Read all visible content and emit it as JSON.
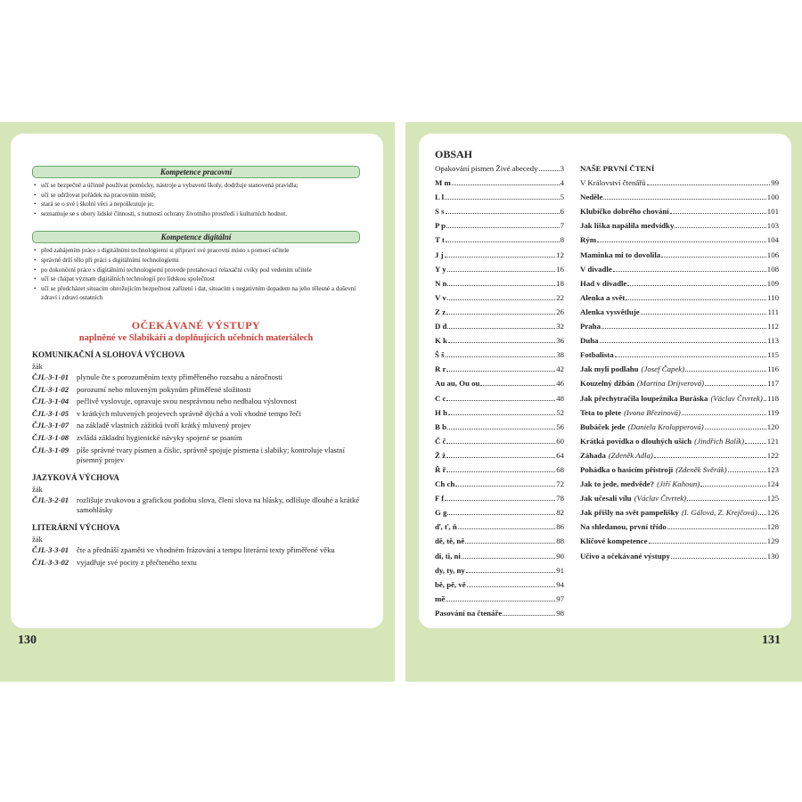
{
  "left": {
    "page_number": "130",
    "competences": [
      {
        "title": "Kompetence pracovní",
        "items": [
          "učí se bezpečně a účinně používat pomůcky, nástroje a vybavení školy, dodržuje stanovená pravidla;",
          "učí se udržovat pořádek na pracovním místě;",
          "stará se o své i školní věci a nepoškozuje je;",
          "seznamuje se s obory lidské činnosti, s nutností ochrany životního prostředí i kulturních hodnot."
        ]
      },
      {
        "title": "Kompetence digitální",
        "items": [
          "před zahájením práce s digitálními technologiemi si připraví své pracovní místo s pomocí učitele",
          "správně drží tělo při práci s digitálními technologiemi",
          "po dokončení práce s digitálními technologiemi provede protahovací relaxační cviky pod vedením učitele",
          "učí se chápat význam digitálních technologií pro lidskou společnost",
          "učí se předcházet situacím ohrožujícím bezpečnost zařízení i dat, situacím s negativním dopadem na jeho tělesné a duševní zdraví i zdraví ostatních"
        ]
      }
    ],
    "outcomes_title": "OČEKÁVANÉ VÝSTUPY",
    "outcomes_subtitle": "naplněné ve Slabikáři a doplňujících učebních materiálech",
    "sections": [
      {
        "title": "KOMUNIKAČNÍ A SLOHOVÁ VÝCHOVA",
        "subject": "žák",
        "items": [
          {
            "code": "ČJL-3-1-01",
            "text": "plynule čte s porozuměním texty přiměřeného rozsahu a náročnosti"
          },
          {
            "code": "ČJL-3-1-02",
            "text": "porozumí nebo mluveným pokynům přiměřené složitosti"
          },
          {
            "code": "ČJL-3-1-04",
            "text": "pečlivě vyslovuje, opravuje svou nesprávnou nebo nedbalou výslovnost"
          },
          {
            "code": "ČJL-3-1-05",
            "text": "v krátkých mluvených projevech správně dýchá a volí vhodné tempo řeči"
          },
          {
            "code": "ČJL-3-1-07",
            "text": "na základě vlastních zážitků tvoří krátký mluvený projev"
          },
          {
            "code": "ČJL-3-1-08",
            "text": "zvládá základní hygienické návyky spojené se psaním"
          },
          {
            "code": "ČJL-3-1-09",
            "text": "píše správné tvary písmen a číslic, správně spojuje písmena i slabiky; kontroluje vlastní písemný projev"
          }
        ]
      },
      {
        "title": "JAZYKOVÁ VÝCHOVA",
        "subject": "žák",
        "items": [
          {
            "code": "ČJL-3-2-01",
            "text": "rozlišuje zvukovou a grafickou podobu slova, člení slova na hlásky, odlišuje dlouhé a krátké samohlásky"
          }
        ]
      },
      {
        "title": "LITERÁRNÍ VÝCHOVA",
        "subject": "žák",
        "items": [
          {
            "code": "ČJL-3-3-01",
            "text": "čte a přednáší zpaměti ve vhodném frázování a tempu literární texty přiměřené věku"
          },
          {
            "code": "ČJL-3-3-02",
            "text": "vyjadřuje své pocity z přečteného textu"
          }
        ]
      }
    ]
  },
  "right": {
    "page_number": "131",
    "title": "OBSAH",
    "column1": [
      {
        "title": "Opakování písmen Živé abecedy",
        "page": "3"
      },
      {
        "title": "M m",
        "page": "4"
      },
      {
        "title": "L l",
        "page": "5"
      },
      {
        "title": "S s",
        "page": "6"
      },
      {
        "title": "P p",
        "page": "7"
      },
      {
        "title": "T t",
        "page": "8"
      },
      {
        "title": "J j",
        "page": "12"
      },
      {
        "title": "Y y",
        "page": "16"
      },
      {
        "title": "N n",
        "page": "18"
      },
      {
        "title": "V v",
        "page": "22"
      },
      {
        "title": "Z z",
        "page": "26"
      },
      {
        "title": "D d",
        "page": "32"
      },
      {
        "title": "K k",
        "page": "36"
      },
      {
        "title": "Š š",
        "page": "38"
      },
      {
        "title": "R r",
        "page": "42"
      },
      {
        "title": "Au au, Ou ou",
        "page": "46"
      },
      {
        "title": "C c",
        "page": "48"
      },
      {
        "title": "H h",
        "page": "52"
      },
      {
        "title": "B b",
        "page": "56"
      },
      {
        "title": "Č č",
        "page": "60"
      },
      {
        "title": "Ž ž",
        "page": "64"
      },
      {
        "title": "Ř ř",
        "page": "68"
      },
      {
        "title": "Ch ch",
        "page": "72"
      },
      {
        "title": "F f",
        "page": "78"
      },
      {
        "title": "G g",
        "page": "82"
      },
      {
        "title": "ď, ť, ň",
        "page": "86"
      },
      {
        "title": "dě, tě, ně",
        "page": "88"
      },
      {
        "title": "di, ti, ni",
        "page": "90"
      },
      {
        "title": "dy, ty, ny",
        "page": "91"
      },
      {
        "title": "bě, pě, vě",
        "page": "94"
      },
      {
        "title": "mě",
        "page": "97"
      },
      {
        "title": "Pasování na čtenáře",
        "page": "98"
      }
    ],
    "column2_title": "NAŠE PRVNÍ ČTENÍ",
    "column2": [
      {
        "title": "V Království čtenářů",
        "page": "99"
      },
      {
        "title": "Neděle",
        "page": "100"
      },
      {
        "title": "Klubíčko dobrého chování",
        "page": "101"
      },
      {
        "title": "Jak liška napálila medvídky",
        "page": "103"
      },
      {
        "title": "Rým",
        "page": "104"
      },
      {
        "title": "Maminka mi to dovolila",
        "page": "106"
      },
      {
        "title": "V divadle",
        "page": "108"
      },
      {
        "title": "Had v divadle",
        "page": "109"
      },
      {
        "title": "Alenka a svět",
        "page": "110"
      },
      {
        "title": "Alenka vysvětluje",
        "page": "111"
      },
      {
        "title": "Praha",
        "page": "112"
      },
      {
        "title": "Duha",
        "page": "113"
      },
      {
        "title": "Fotbalista",
        "page": "115"
      },
      {
        "title": "Jak myli podlahu",
        "author": "(Josef Čapek)",
        "page": "116"
      },
      {
        "title": "Kouzelný džbán",
        "author": "(Martina Drijverová)",
        "page": "117"
      },
      {
        "title": "Jak přechytračila loupežníka Buráska",
        "author": "(Václav Čtvrtek)",
        "page": "118"
      },
      {
        "title": "Teta to plete",
        "author": "(Ivona Březinová)",
        "page": "119"
      },
      {
        "title": "Bubáček jede",
        "author": "(Daniela Krolupperová)",
        "page": "120"
      },
      {
        "title": "Krátká povídka o dlouhých uších",
        "author": "(Jindřich Balík)",
        "page": "121"
      },
      {
        "title": "Záhada",
        "author": "(Zdeněk Adla)",
        "page": "122"
      },
      {
        "title": "Pohádka o hasicím přístroji",
        "author": "(Zdeněk Svěrák)",
        "page": "123"
      },
      {
        "title": "Jak to jede, medvěde?",
        "author": "(Jiří Kahoun)",
        "page": "124"
      },
      {
        "title": "Jak učesali vílu",
        "author": "(Václav Čtvrtek)",
        "page": "125"
      },
      {
        "title": "Jak přišly na svět pampelišky",
        "author": "(I. Gálová, Z. Krejčová)",
        "page": "126"
      },
      {
        "title": "Na shledanou, první třído",
        "page": "128"
      },
      {
        "title": "Klíčové kompetence",
        "page": "129"
      },
      {
        "title": "Učivo a očekávané výstupy",
        "page": "130"
      }
    ]
  }
}
